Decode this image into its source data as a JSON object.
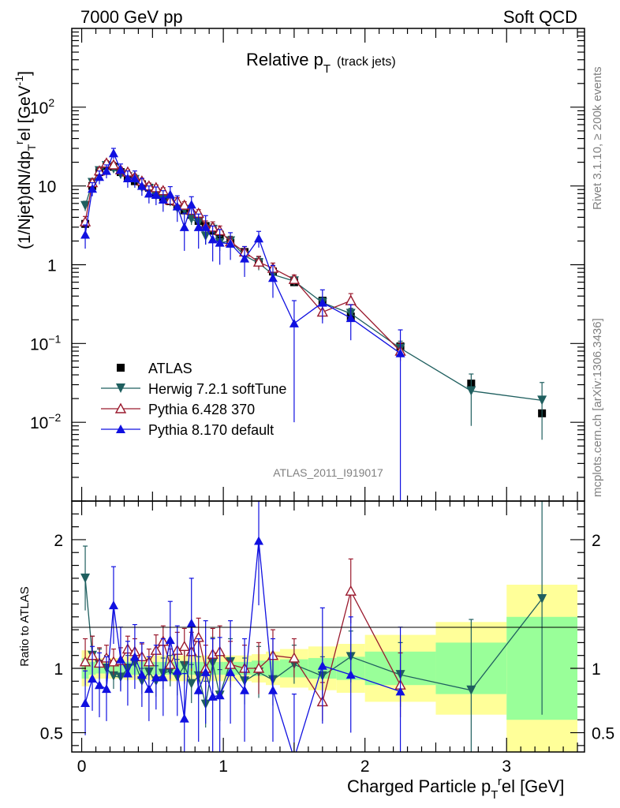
{
  "header": {
    "left": "7000 GeV pp",
    "right": "Soft QCD"
  },
  "side": {
    "rivet": "Rivet 3.1.10, ≥ 200k events",
    "mcplots": "mcplots.cern.ch [arXiv:1306.3436]"
  },
  "main_title": {
    "base": "Relative p",
    "sub": "T",
    "extra": "(track jets)"
  },
  "analysis_label": "ATLAS_2011_I919017",
  "colors": {
    "atlas": "#000000",
    "herwig": "#1f5f5f",
    "pythia6": "#9a1a2e",
    "pythia8": "#1010e0",
    "band_inner": "#99ff99",
    "band_outer": "#ffff99"
  },
  "chart_data": [
    {
      "type": "line",
      "panel": "main",
      "ylabel": "(1/Njet)dN/dp_T^rel [GeV^-1]",
      "yscale": "log",
      "ylim": [
        0.001,
        1000
      ],
      "xlim": [
        -0.07,
        3.55
      ],
      "y_ticks": [
        {
          "value": 100,
          "base": "10",
          "exp": "2"
        },
        {
          "value": 10,
          "base": "10",
          "exp": ""
        },
        {
          "value": 1,
          "base": "1",
          "exp": ""
        },
        {
          "value": 0.1,
          "base": "10",
          "exp": "−1"
        },
        {
          "value": 0.01,
          "base": "10",
          "exp": "−2"
        }
      ],
      "legend": [
        {
          "key": "atlas",
          "label": "ATLAS"
        },
        {
          "key": "herwig",
          "label": "Herwig 7.2.1 softTune"
        },
        {
          "key": "pythia6",
          "label": "Pythia 6.428 370"
        },
        {
          "key": "pythia8",
          "label": "Pythia 8.170 default"
        }
      ],
      "series": [
        {
          "key": "atlas",
          "name": "ATLAS",
          "marker": "square",
          "x": [
            0.025,
            0.075,
            0.125,
            0.175,
            0.225,
            0.275,
            0.325,
            0.375,
            0.425,
            0.475,
            0.525,
            0.575,
            0.625,
            0.675,
            0.725,
            0.775,
            0.825,
            0.875,
            0.925,
            0.975,
            1.05,
            1.15,
            1.25,
            1.35,
            1.5,
            1.7,
            1.9,
            2.25,
            2.75,
            3.25
          ],
          "y": [
            3.3,
            10,
            15,
            18,
            17.5,
            15,
            13,
            11.5,
            10.5,
            9.5,
            8.3,
            7.2,
            6.4,
            5.6,
            4.9,
            4.3,
            3.6,
            3.1,
            2.7,
            2.4,
            1.9,
            1.45,
            1.08,
            0.82,
            0.6,
            0.35,
            0.22,
            0.092,
            0.031,
            0.013
          ]
        },
        {
          "key": "herwig",
          "name": "Herwig 7.2.1 softTune",
          "marker": "triangle-down",
          "x": [
            0.025,
            0.075,
            0.125,
            0.175,
            0.225,
            0.275,
            0.325,
            0.375,
            0.425,
            0.475,
            0.525,
            0.575,
            0.625,
            0.675,
            0.725,
            0.775,
            0.825,
            0.875,
            0.925,
            0.975,
            1.05,
            1.15,
            1.25,
            1.35,
            1.5,
            1.7,
            1.9,
            2.25,
            2.75,
            3.25
          ],
          "y": [
            5.6,
            11,
            15.5,
            18,
            16.5,
            14,
            13,
            12,
            9.5,
            9.2,
            7.5,
            6.9,
            6.3,
            5.2,
            5.0,
            3.8,
            3.4,
            2.3,
            2.8,
            1.9,
            2.0,
            1.3,
            1.05,
            0.75,
            0.62,
            0.33,
            0.24,
            0.087,
            0.025,
            0.019
          ],
          "err": [
            0.8,
            1.2,
            1.5,
            1.5,
            1.5,
            1.2,
            1.1,
            1.0,
            0.9,
            0.9,
            0.8,
            0.8,
            0.7,
            0.7,
            0.6,
            0.6,
            0.5,
            0.5,
            0.5,
            0.4,
            0.3,
            0.25,
            0.2,
            0.15,
            0.09,
            0.05,
            0.04,
            0.02,
            0.016,
            0.013
          ]
        },
        {
          "key": "pythia6",
          "name": "Pythia 6.428 370",
          "marker": "triangle-up-open",
          "x": [
            0.025,
            0.075,
            0.125,
            0.175,
            0.225,
            0.275,
            0.325,
            0.375,
            0.425,
            0.475,
            0.525,
            0.575,
            0.625,
            0.675,
            0.725,
            0.775,
            0.825,
            0.875,
            0.925,
            0.975,
            1.05,
            1.15,
            1.25,
            1.35,
            1.5,
            1.7,
            1.9,
            2.25
          ],
          "y": [
            3.5,
            11,
            15.5,
            19.5,
            18.5,
            16,
            15,
            13,
            11.5,
            10,
            9.5,
            8.7,
            6.6,
            6.4,
            5.7,
            4.9,
            4.5,
            3.1,
            3.0,
            2.7,
            1.95,
            1.45,
            1.08,
            0.9,
            0.65,
            0.25,
            0.35,
            0.08
          ],
          "err": [
            0.6,
            1.2,
            1.5,
            1.5,
            1.5,
            1.2,
            1.1,
            1.0,
            0.9,
            0.9,
            0.8,
            0.8,
            0.7,
            0.7,
            0.6,
            0.6,
            0.5,
            0.5,
            0.5,
            0.4,
            0.3,
            0.25,
            0.2,
            0.15,
            0.09,
            0.05,
            0.08,
            0.02
          ]
        },
        {
          "key": "pythia8",
          "name": "Pythia 8.170 default",
          "marker": "triangle-up",
          "x": [
            0.025,
            0.075,
            0.125,
            0.175,
            0.225,
            0.275,
            0.325,
            0.375,
            0.425,
            0.475,
            0.525,
            0.575,
            0.625,
            0.675,
            0.725,
            0.775,
            0.825,
            0.875,
            0.925,
            0.975,
            1.05,
            1.15,
            1.25,
            1.35,
            1.5,
            1.7,
            1.9,
            2.25
          ],
          "y": [
            2.4,
            9.2,
            13,
            15.5,
            26,
            16,
            12.5,
            12.5,
            10,
            8,
            7.7,
            6.7,
            7.8,
            5.5,
            3.0,
            5.8,
            3.0,
            3.0,
            2.1,
            1.9,
            1.85,
            1.2,
            2.15,
            0.68,
            0.18,
            0.33,
            0.21,
            0.075
          ],
          "err": [
            0.8,
            1.8,
            2.5,
            3,
            4,
            3,
            3,
            3,
            2.5,
            2,
            2,
            2,
            2,
            2,
            1.5,
            1.5,
            1.4,
            1.2,
            1.0,
            0.9,
            0.7,
            0.5,
            0.5,
            0.3,
            0.17,
            0.15,
            0.1,
            0.074
          ]
        }
      ]
    },
    {
      "type": "line",
      "panel": "ratio",
      "ylabel": "Ratio to ATLAS",
      "ylim": [
        0.35,
        2.3
      ],
      "xlabel": "Charged Particle p_T^rel [GeV]",
      "y_ticks": [
        0.5,
        1,
        2
      ],
      "x_ticks": [
        0,
        1,
        2,
        3
      ],
      "band_bins": [
        0,
        0.05,
        0.1,
        0.15,
        0.2,
        0.25,
        0.3,
        0.35,
        0.4,
        0.45,
        0.5,
        0.55,
        0.6,
        0.65,
        0.7,
        0.75,
        0.8,
        0.85,
        0.9,
        0.95,
        1.0,
        1.1,
        1.2,
        1.3,
        1.4,
        1.6,
        1.8,
        2.0,
        2.5,
        3.0,
        3.5
      ],
      "band_inner": [
        0.08,
        0.05,
        0.04,
        0.04,
        0.04,
        0.04,
        0.05,
        0.05,
        0.05,
        0.05,
        0.05,
        0.05,
        0.05,
        0.05,
        0.05,
        0.05,
        0.05,
        0.05,
        0.05,
        0.05,
        0.05,
        0.05,
        0.06,
        0.06,
        0.07,
        0.08,
        0.09,
        0.13,
        0.2,
        0.4
      ],
      "band_outer": [
        0.14,
        0.1,
        0.08,
        0.08,
        0.08,
        0.08,
        0.09,
        0.09,
        0.09,
        0.09,
        0.1,
        0.1,
        0.1,
        0.1,
        0.1,
        0.1,
        0.1,
        0.1,
        0.1,
        0.1,
        0.1,
        0.1,
        0.11,
        0.13,
        0.15,
        0.17,
        0.19,
        0.26,
        0.36,
        0.65
      ],
      "series": [
        {
          "key": "herwig",
          "name": "Herwig 7.2.1 softTune",
          "x": [
            0.025,
            0.075,
            0.125,
            0.175,
            0.225,
            0.275,
            0.325,
            0.375,
            0.425,
            0.475,
            0.525,
            0.575,
            0.625,
            0.675,
            0.725,
            0.775,
            0.825,
            0.875,
            0.925,
            0.975,
            1.05,
            1.15,
            1.25,
            1.35,
            1.5,
            1.7,
            1.9,
            2.25,
            2.75,
            3.25
          ],
          "y": [
            1.7,
            1.1,
            1.03,
            1.0,
            0.94,
            0.93,
            1.0,
            1.04,
            0.9,
            0.97,
            0.9,
            0.96,
            0.98,
            0.93,
            1.02,
            0.88,
            0.94,
            0.72,
            1.04,
            0.79,
            1.05,
            0.9,
            0.97,
            0.91,
            1.03,
            0.94,
            1.09,
            0.95,
            0.83,
            1.54
          ],
          "err": [
            0.25,
            0.15,
            0.12,
            0.1,
            0.1,
            0.1,
            0.1,
            0.1,
            0.1,
            0.1,
            0.12,
            0.12,
            0.12,
            0.14,
            0.14,
            0.15,
            0.15,
            0.18,
            0.2,
            0.2,
            0.18,
            0.18,
            0.2,
            0.2,
            0.15,
            0.15,
            0.2,
            0.25,
            0.55,
            0.9
          ]
        },
        {
          "key": "pythia6",
          "name": "Pythia 6.428 370",
          "x": [
            0.025,
            0.075,
            0.125,
            0.175,
            0.225,
            0.275,
            0.325,
            0.375,
            0.425,
            0.475,
            0.525,
            0.575,
            0.625,
            0.675,
            0.725,
            0.775,
            0.825,
            0.875,
            0.925,
            0.975,
            1.05,
            1.15,
            1.25,
            1.35,
            1.5,
            1.7,
            1.9,
            2.25
          ],
          "y": [
            1.05,
            1.1,
            1.04,
            1.08,
            1.05,
            1.06,
            1.15,
            1.13,
            1.09,
            1.05,
            1.14,
            1.21,
            1.03,
            1.14,
            1.17,
            1.13,
            1.24,
            1.0,
            1.11,
            1.13,
            1.03,
            1.0,
            1.0,
            1.1,
            1.08,
            0.74,
            1.6,
            0.87
          ],
          "err": [
            0.18,
            0.15,
            0.12,
            0.1,
            0.1,
            0.1,
            0.1,
            0.1,
            0.1,
            0.1,
            0.12,
            0.12,
            0.12,
            0.14,
            0.14,
            0.15,
            0.15,
            0.18,
            0.2,
            0.2,
            0.18,
            0.18,
            0.2,
            0.2,
            0.15,
            0.15,
            0.25,
            0.25
          ]
        },
        {
          "key": "pythia8",
          "name": "Pythia 8.170 default",
          "x": [
            0.025,
            0.075,
            0.125,
            0.175,
            0.225,
            0.275,
            0.325,
            0.375,
            0.425,
            0.475,
            0.525,
            0.575,
            0.625,
            0.675,
            0.725,
            0.775,
            0.825,
            0.875,
            0.925,
            0.975,
            1.05,
            1.15,
            1.25,
            1.35,
            1.5,
            1.7,
            1.9,
            2.25
          ],
          "y": [
            0.73,
            0.92,
            0.87,
            0.84,
            1.49,
            1.07,
            0.96,
            1.09,
            0.95,
            0.84,
            0.93,
            0.93,
            1.22,
            0.98,
            0.61,
            1.35,
            0.83,
            0.97,
            0.78,
            0.79,
            0.97,
            0.83,
            1.99,
            0.83,
            0.3,
            1.02,
            0.95,
            0.82
          ],
          "err": [
            0.25,
            0.25,
            0.25,
            0.25,
            0.3,
            0.25,
            0.25,
            0.25,
            0.25,
            0.25,
            0.25,
            0.3,
            0.3,
            0.35,
            0.35,
            0.35,
            0.4,
            0.4,
            0.45,
            0.45,
            0.4,
            0.4,
            0.5,
            0.4,
            0.5,
            0.45,
            0.45,
            0.5
          ]
        }
      ]
    }
  ]
}
